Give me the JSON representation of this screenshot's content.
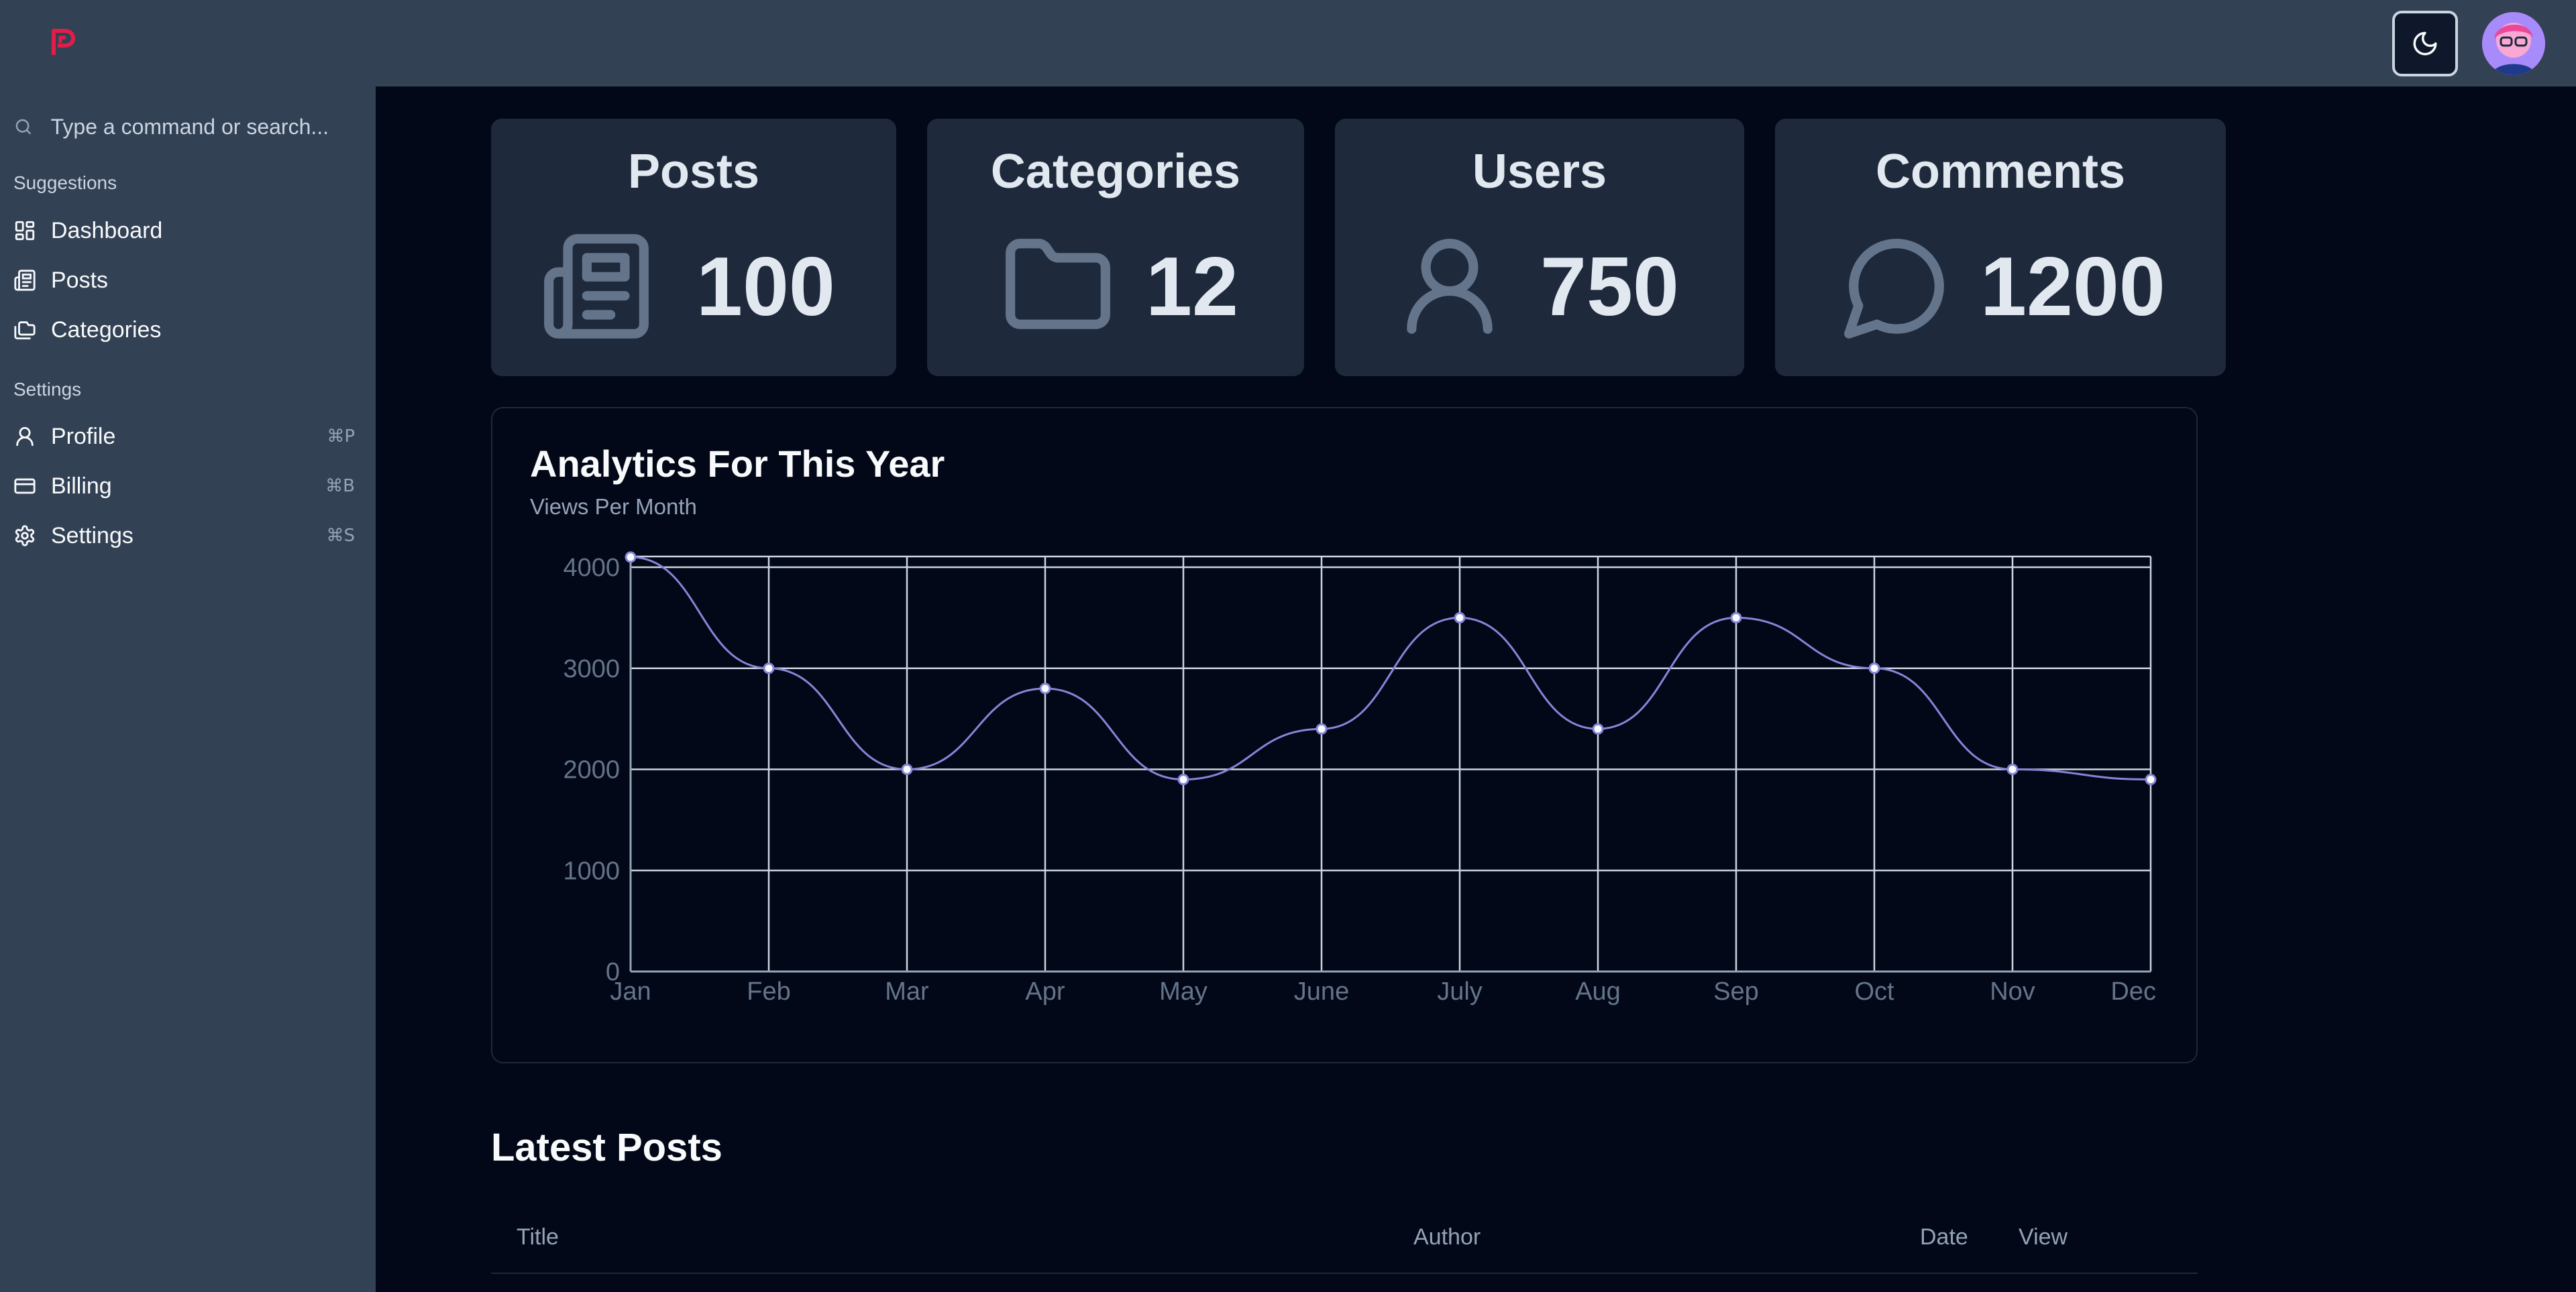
{
  "header": {
    "theme_toggle": "moon-icon",
    "avatar": "avatar",
    "colors": {
      "bar": "#334155",
      "logo": "#e11d48"
    }
  },
  "sidebar": {
    "search_placeholder": "Type a command or search...",
    "groups": [
      {
        "label": "Suggestions",
        "items": [
          {
            "label": "Dashboard",
            "icon": "dashboard-icon"
          },
          {
            "label": "Posts",
            "icon": "newspaper-icon"
          },
          {
            "label": "Categories",
            "icon": "folders-icon"
          }
        ]
      },
      {
        "label": "Settings",
        "items": [
          {
            "label": "Profile",
            "icon": "user-icon",
            "shortcut": "⌘P"
          },
          {
            "label": "Billing",
            "icon": "credit-card-icon",
            "shortcut": "⌘B"
          },
          {
            "label": "Settings",
            "icon": "gear-icon",
            "shortcut": "⌘S"
          }
        ]
      }
    ]
  },
  "stats": [
    {
      "title": "Posts",
      "value": "100",
      "icon": "newspaper-icon"
    },
    {
      "title": "Categories",
      "value": "12",
      "icon": "folder-icon"
    },
    {
      "title": "Users",
      "value": "750",
      "icon": "user-icon"
    },
    {
      "title": "Comments",
      "value": "1200",
      "icon": "message-circle-icon"
    }
  ],
  "analytics": {
    "title": "Analytics For This Year",
    "subtitle": "Views Per Month"
  },
  "chart_data": {
    "type": "line",
    "categories": [
      "Jan",
      "Feb",
      "Mar",
      "Apr",
      "May",
      "June",
      "July",
      "Aug",
      "Sep",
      "Oct",
      "Nov",
      "Dec"
    ],
    "series": [
      {
        "values": [
          4100,
          3000,
          2000,
          2800,
          1900,
          2400,
          3500,
          2400,
          3500,
          3000,
          2000,
          1900
        ]
      }
    ],
    "yticks": [
      0,
      1000,
      2000,
      3000,
      4000
    ],
    "ylim": [
      0,
      4000
    ],
    "grid": true,
    "line_color": "#8884d8"
  },
  "latest_posts": {
    "title": "Latest Posts",
    "columns": [
      "Title",
      "Author",
      "Date",
      "View"
    ]
  }
}
